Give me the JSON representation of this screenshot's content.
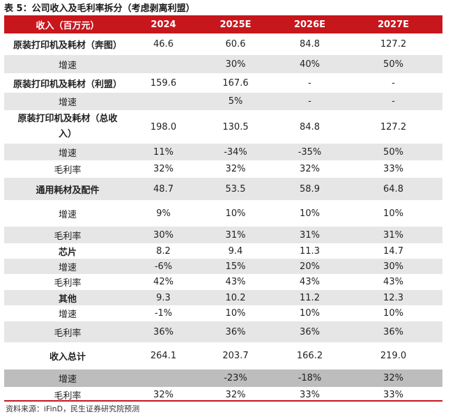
{
  "title": "表 5：公司收入及毛利率拆分（考虑剥离利盟）",
  "header": [
    "收入（百万元）",
    "2024",
    "2025E",
    "2026E",
    "2027E"
  ],
  "rows": [
    {
      "cells": [
        "原装打印机及耗材（奔图）",
        "46.6",
        "60.6",
        "84.8",
        "127.2"
      ],
      "bold": true,
      "bg": "white",
      "h": 31
    },
    {
      "cells": [
        "增速",
        "",
        "30%",
        "40%",
        "50%"
      ],
      "bold": false,
      "bg": "grey",
      "h": 26
    },
    {
      "cells": [
        "原装打印机及耗材（利盟）",
        "159.6",
        "167.6",
        "-",
        "-"
      ],
      "bold": true,
      "bg": "white",
      "h": 28
    },
    {
      "cells": [
        "增速",
        "",
        "5%",
        "-",
        "-"
      ],
      "bold": false,
      "bg": "grey",
      "h": 25
    },
    {
      "cells": [
        "原装打印机及耗材（总收入）",
        "198.0",
        "130.5",
        "84.8",
        "127.2"
      ],
      "bold": true,
      "bg": "white",
      "h": 48,
      "multi": true
    },
    {
      "cells": [
        "增速",
        "11%",
        "-34%",
        "-35%",
        "50%"
      ],
      "bold": false,
      "bg": "grey",
      "h": 24
    },
    {
      "cells": [
        "毛利率",
        "32%",
        "32%",
        "32%",
        "33%"
      ],
      "bold": false,
      "bg": "white",
      "h": 25
    },
    {
      "cells": [
        "通用耗材及配件",
        "48.7",
        "53.5",
        "58.9",
        "64.8"
      ],
      "bold": true,
      "bg": "grey",
      "h": 32
    },
    {
      "cells": [
        "增速",
        "9%",
        "10%",
        "10%",
        "10%"
      ],
      "bold": false,
      "bg": "white",
      "h": 38
    },
    {
      "cells": [
        "毛利率",
        "30%",
        "31%",
        "31%",
        "31%"
      ],
      "bold": false,
      "bg": "grey",
      "h": 24
    },
    {
      "cells": [
        "芯片",
        "8.2",
        "9.4",
        "11.3",
        "14.7"
      ],
      "bold": true,
      "bg": "white",
      "h": 22
    },
    {
      "cells": [
        "增速",
        "-6%",
        "15%",
        "20%",
        "30%"
      ],
      "bold": false,
      "bg": "grey",
      "h": 22
    },
    {
      "cells": [
        "毛利率",
        "42%",
        "43%",
        "43%",
        "43%"
      ],
      "bold": false,
      "bg": "white",
      "h": 23
    },
    {
      "cells": [
        "其他",
        "9.3",
        "10.2",
        "11.2",
        "12.3"
      ],
      "bold": true,
      "bg": "grey",
      "h": 22
    },
    {
      "cells": [
        "增速",
        "-1%",
        "10%",
        "10%",
        "10%"
      ],
      "bold": false,
      "bg": "white",
      "h": 23
    },
    {
      "cells": [
        "毛利率",
        "36%",
        "36%",
        "36%",
        "36%"
      ],
      "bold": false,
      "bg": "grey",
      "h": 30
    },
    {
      "cells": [
        "收入总计",
        "264.1",
        "203.7",
        "166.2",
        "219.0"
      ],
      "bold": true,
      "bg": "white",
      "h": 39
    },
    {
      "cells": [
        "增速",
        "",
        "-23%",
        "-18%",
        "32%"
      ],
      "bold": false,
      "bg": "darkgrey",
      "h": 25
    },
    {
      "cells": [
        "毛利率",
        "32%",
        "32%",
        "33%",
        "33%"
      ],
      "bold": false,
      "bg": "white",
      "h": 22
    }
  ],
  "source": "资料来源：iFinD，民生证券研究院预测"
}
